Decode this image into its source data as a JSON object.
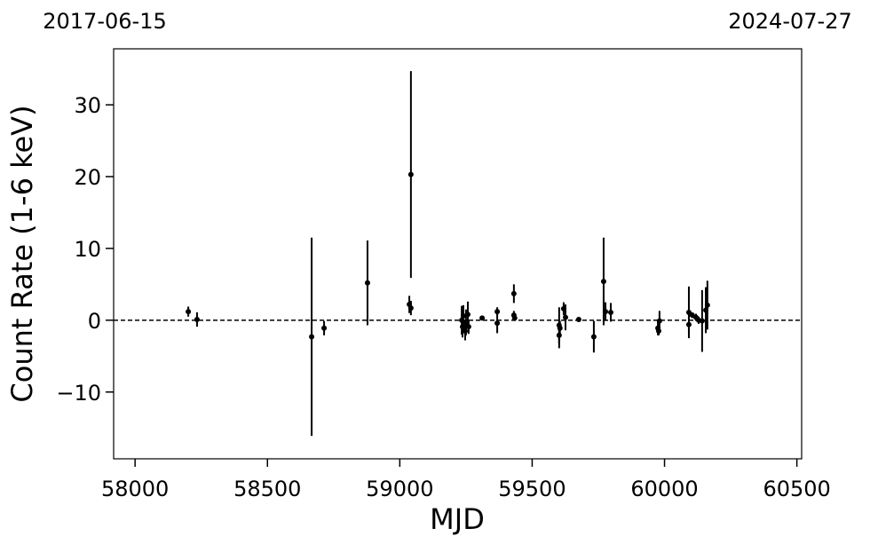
{
  "chart_data": {
    "type": "errorbar",
    "x_label": "MJD",
    "y_label": "Count Rate (1-6 keV)",
    "xlim": [
      57919,
      60518
    ],
    "ylim": [
      -19.3,
      37.8
    ],
    "xticks": [
      58000,
      58500,
      59000,
      59500,
      60000,
      60500
    ],
    "yticks": [
      {
        "value": -10,
        "label": "−10"
      },
      0,
      10,
      20,
      30
    ],
    "x2ticks": [
      {
        "value": 57919,
        "label": "2017-06-15"
      },
      {
        "value": 60518,
        "label": "2024-07-27"
      }
    ],
    "hline": 0,
    "color": "#000000",
    "series": [
      {
        "name": "Count Rate",
        "color": "#000000",
        "x": [
          58201,
          58234,
          58667,
          58714,
          58878,
          59036,
          59042,
          59042,
          59234,
          59237,
          59240,
          59247,
          59250,
          59257,
          59260,
          59311,
          59368,
          59368,
          59431,
          59431,
          59434,
          59602,
          59602,
          59605,
          59619,
          59626,
          59676,
          59733,
          59770,
          59777,
          59797,
          59975,
          59978,
          59981,
          60092,
          60092,
          60105,
          60119,
          60129,
          60142,
          60156,
          60162
        ],
        "values": [
          1.2,
          0.1,
          -2.3,
          -1.1,
          5.2,
          2.2,
          20.3,
          1.7,
          0,
          -0.9,
          0.6,
          -1.5,
          -0.3,
          0.8,
          -0.9,
          0.3,
          1.2,
          -0.4,
          3.7,
          0.7,
          0.3,
          -2.1,
          -0.7,
          -1.1,
          1.6,
          0.4,
          0.1,
          -2.3,
          5.4,
          1.2,
          1.1,
          -1.1,
          -1.5,
          -0.1,
          -0.6,
          1.1,
          0.7,
          0.4,
          0,
          -0.1,
          1.4,
          2.1
        ],
        "errors": [
          0.7,
          1.0,
          13.8,
          1.0,
          5.9,
          1.2,
          14.4,
          1.0,
          2.0,
          1.5,
          1.5,
          1.3,
          1.8,
          1.8,
          1.0,
          0.3,
          0.6,
          1.4,
          1.3,
          0.6,
          0.4,
          1.8,
          2.5,
          1.0,
          0.9,
          1.8,
          0.2,
          2.2,
          6.1,
          1.3,
          1.3,
          1.0,
          0.6,
          1.4,
          1.2,
          3.6,
          0.4,
          0.5,
          0.5,
          4.3,
          3.2,
          3.4
        ]
      }
    ]
  }
}
